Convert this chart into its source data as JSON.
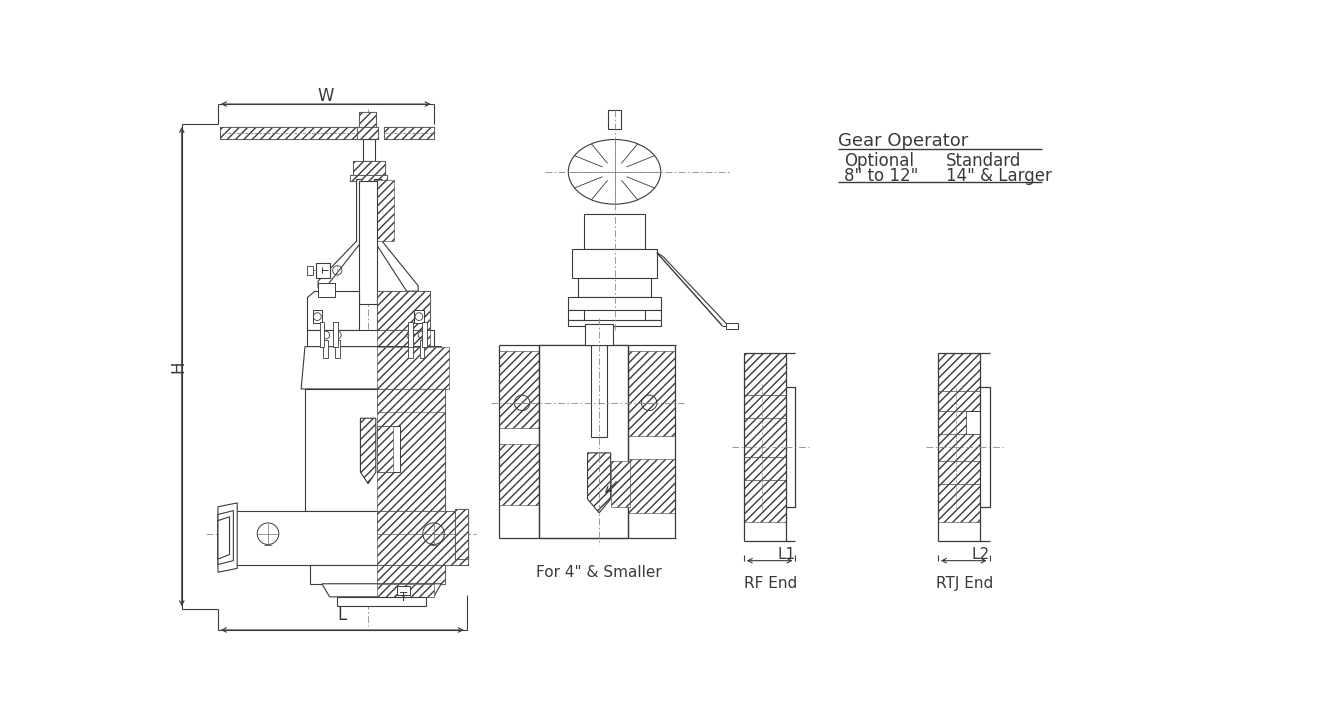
{
  "bg_color": "#ffffff",
  "line_color": "#3a3a3a",
  "gear_operator_title": "Gear Operator",
  "col1_header": "Optional",
  "col2_header": "Standard",
  "col1_val": "8\" to 12\"",
  "col2_val": "14\" & Larger",
  "label_W": "W",
  "label_H": "H",
  "label_L": "L",
  "label_T": "T",
  "label_L1": "L1",
  "label_L2": "L2",
  "caption1": "For 4\" & Smaller",
  "caption2": "RF End",
  "caption3": "RTJ End",
  "fig_w": 13.17,
  "fig_h": 7.26,
  "dpi": 100
}
